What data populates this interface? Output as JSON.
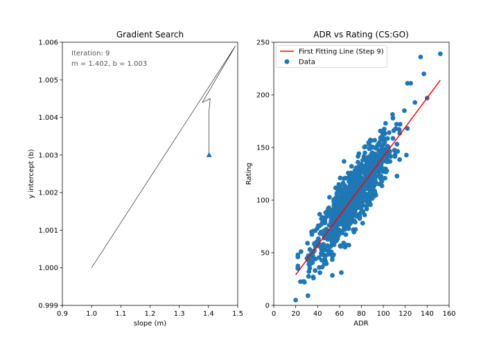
{
  "chart_data": [
    {
      "type": "line",
      "title": "Gradient Search",
      "xlabel": "slope (m)",
      "ylabel": "y intercept (b)",
      "xlim": [
        0.9,
        1.5
      ],
      "ylim": [
        0.999,
        1.006
      ],
      "xticks": [
        "0.9",
        "1.0",
        "1.1",
        "1.2",
        "1.3",
        "1.4",
        "1.5"
      ],
      "yticks": [
        "0.999",
        "1.000",
        "1.001",
        "1.002",
        "1.003",
        "1.004",
        "1.005",
        "1.006"
      ],
      "grid": false,
      "annotations": [
        "Iteration: 9",
        "m = 1.402, b = 1.003"
      ],
      "path": {
        "x": [
          1.0,
          1.492,
          1.379,
          1.406,
          1.402,
          1.402,
          1.402,
          1.402,
          1.402
        ],
        "y": [
          1.0,
          1.0059,
          1.0044,
          1.0045,
          1.0042,
          1.0037,
          1.0034,
          1.0031,
          1.003
        ]
      },
      "marker": {
        "x": 1.402,
        "y": 1.003,
        "shape": "triangle"
      },
      "colors": {
        "path": "#000000",
        "marker": "#1f77b4"
      }
    },
    {
      "type": "scatter",
      "title": "ADR vs Rating (CS:GO)",
      "xlabel": "ADR",
      "ylabel": "Rating",
      "xlim": [
        0,
        160
      ],
      "ylim": [
        0,
        250
      ],
      "xticks": [
        "0",
        "20",
        "40",
        "60",
        "80",
        "100",
        "120",
        "140",
        "160"
      ],
      "yticks": [
        "0",
        "50",
        "100",
        "150",
        "200",
        "250"
      ],
      "grid": false,
      "legend_position": "top-left",
      "series": [
        {
          "name": "First Fitting Line (Step 9)",
          "kind": "line",
          "color": "#ff0000",
          "x": [
            20,
            152
          ],
          "y": [
            29,
            214
          ]
        },
        {
          "name": "Data",
          "kind": "scatter",
          "color": "#1f77b4",
          "n_points": 1000,
          "x_mean": 72,
          "x_sd": 18,
          "rating_slope": 1.402,
          "rating_intercept": 1.003,
          "noise_sd": 14,
          "outliers": {
            "x": [
              20,
              28,
              152,
              134,
              137,
              125,
              122,
              140,
              32,
              36
            ],
            "y": [
              5,
              22,
              239,
              236,
              220,
              211,
              211,
              197,
              39,
              27
            ]
          }
        }
      ]
    }
  ]
}
